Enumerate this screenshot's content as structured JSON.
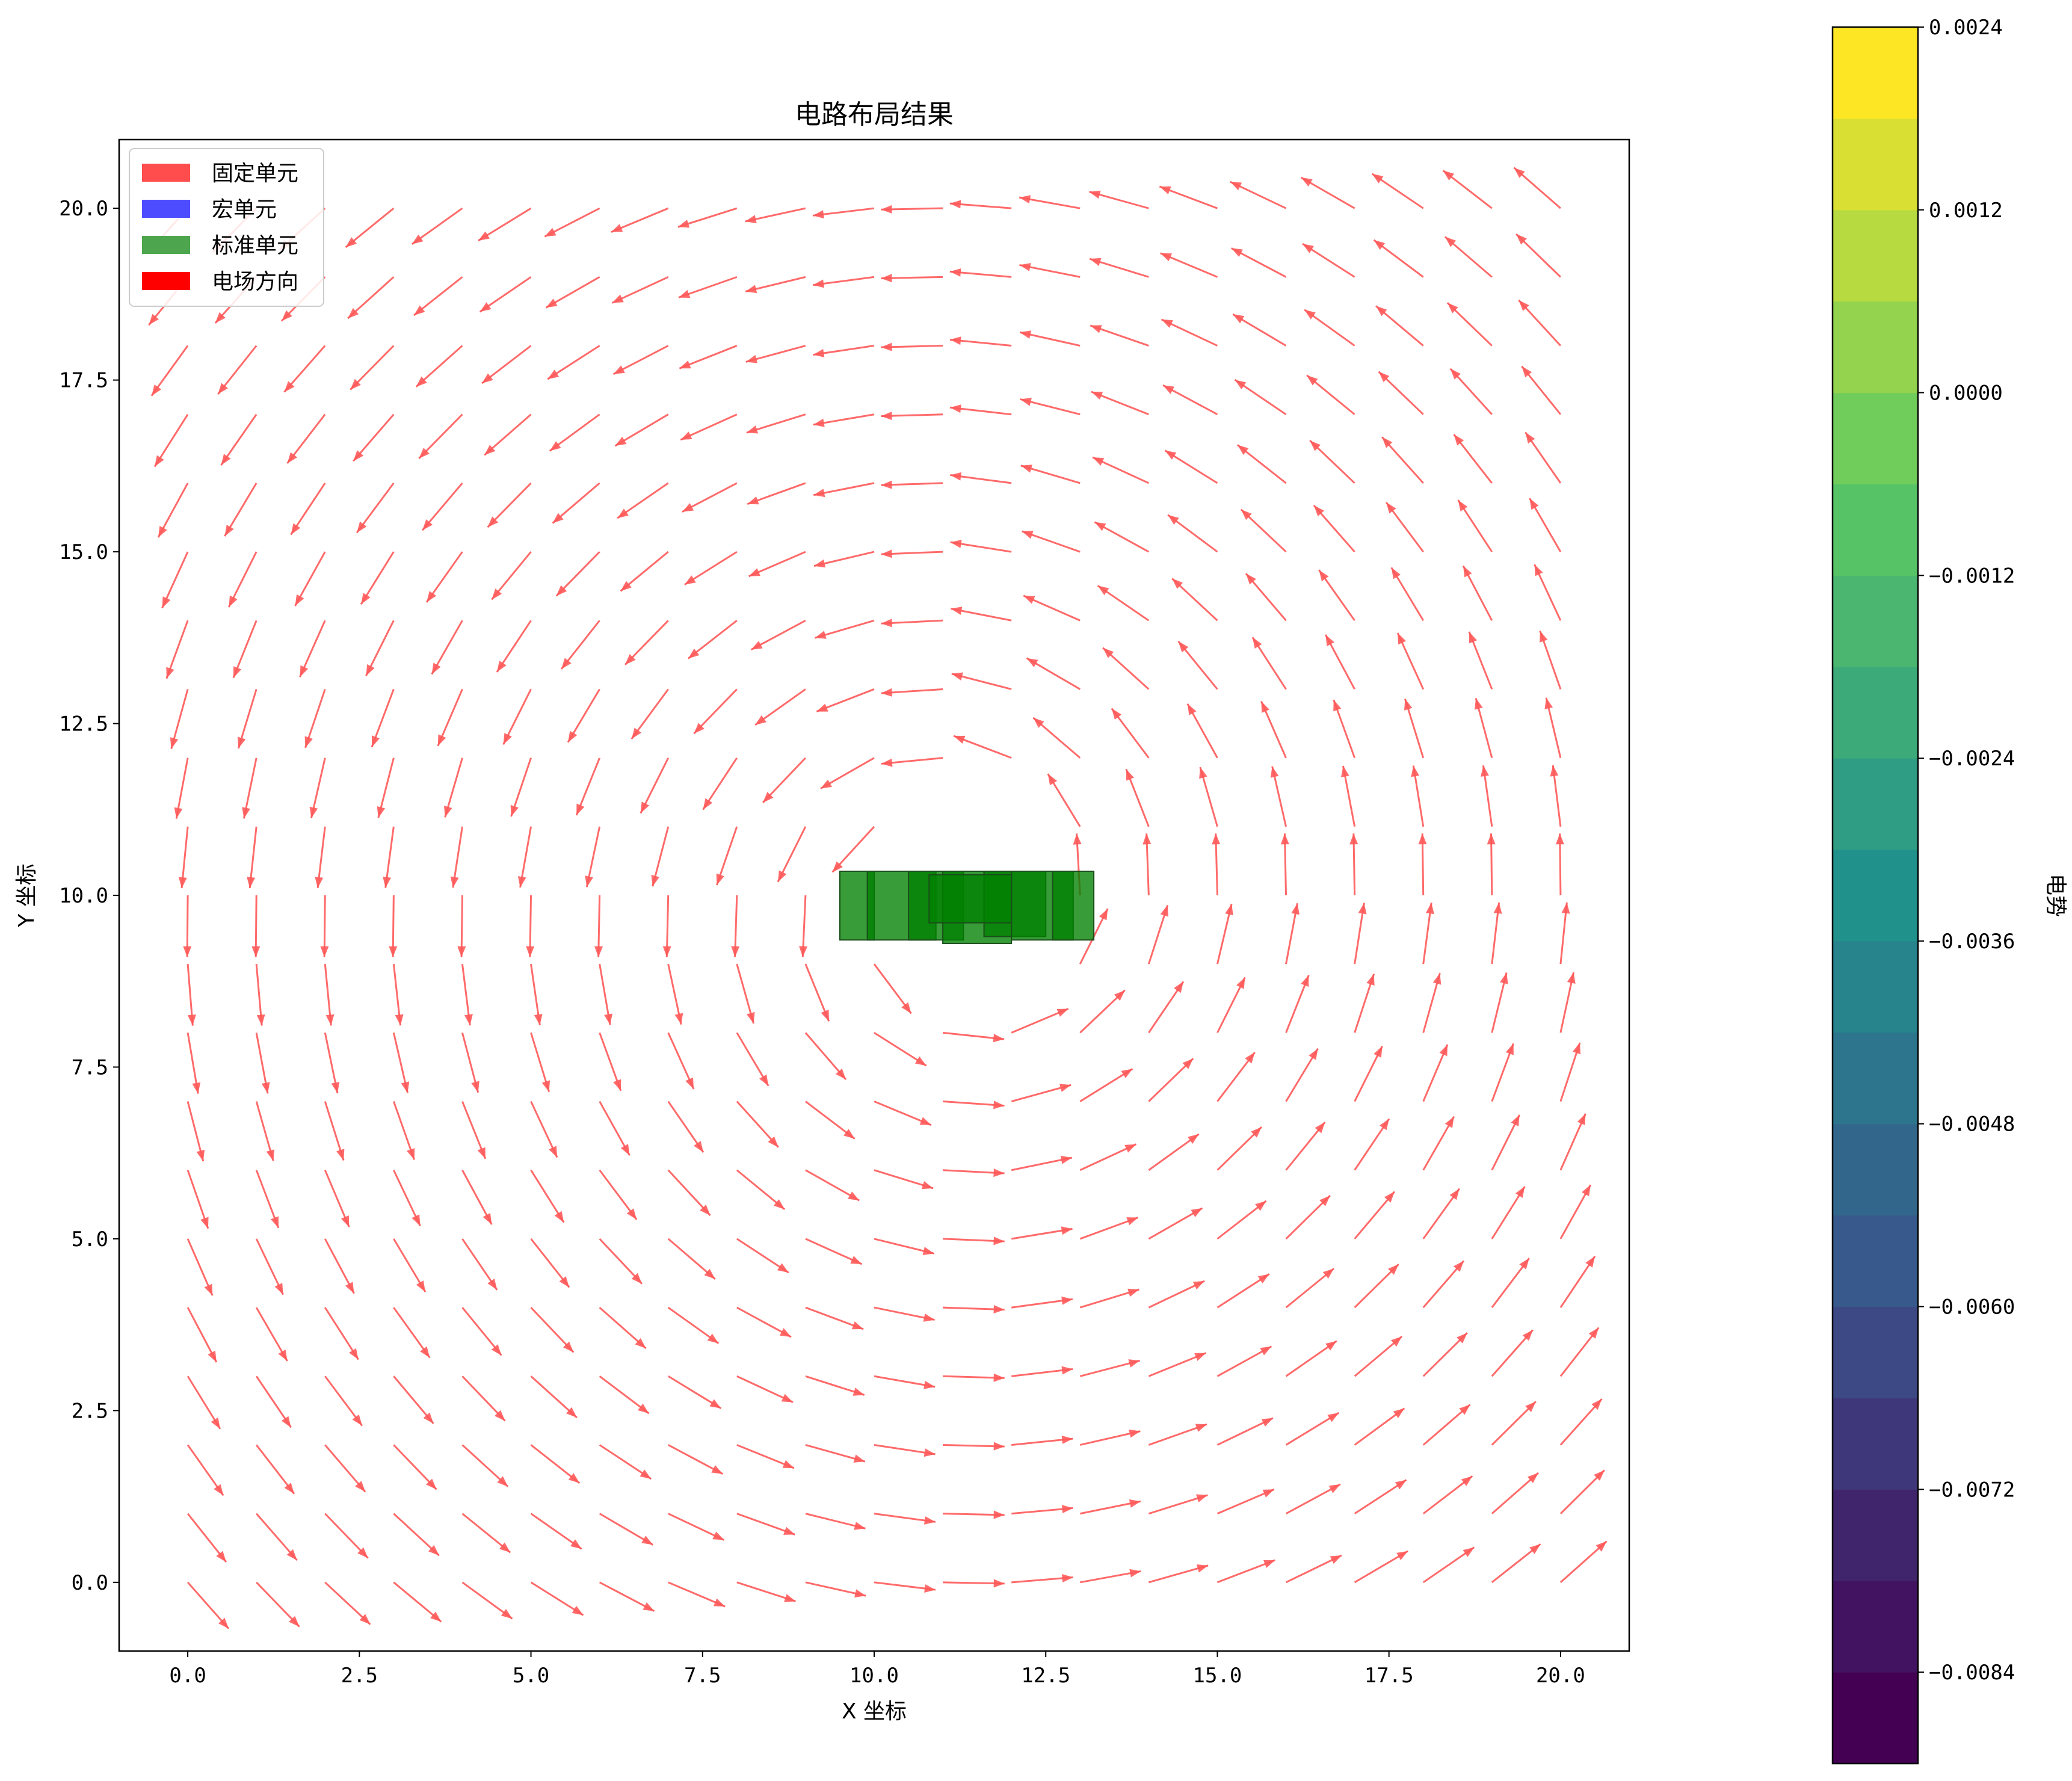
{
  "chart_data": {
    "type": "quiver",
    "title": "电路布局结果",
    "xlabel": "X 坐标",
    "ylabel": "Y 坐标",
    "xlim": [
      -1.0,
      21.0
    ],
    "ylim": [
      -1.0,
      21.0
    ],
    "xticks": [
      0.0,
      2.5,
      5.0,
      7.5,
      10.0,
      12.5,
      15.0,
      17.5,
      20.0
    ],
    "xtick_labels": [
      "0.0",
      "2.5",
      "5.0",
      "7.5",
      "10.0",
      "12.5",
      "15.0",
      "17.5",
      "20.0"
    ],
    "yticks": [
      0.0,
      2.5,
      5.0,
      7.5,
      10.0,
      12.5,
      15.0,
      17.5,
      20.0
    ],
    "ytick_labels": [
      "0.0",
      "2.5",
      "5.0",
      "7.5",
      "10.0",
      "12.5",
      "15.0",
      "17.5",
      "20.0"
    ],
    "grid": false,
    "legend_position": "top-left",
    "legend": [
      {
        "label": "固定单元",
        "color": "#ff4d4d"
      },
      {
        "label": "宏单元",
        "color": "#4d4dff"
      },
      {
        "label": "标准单元",
        "color": "#4da64d"
      },
      {
        "label": "电场方向",
        "color": "#ff0000"
      }
    ],
    "arrow_color": "#ff5a5a",
    "arrow_grid": {
      "x_start": 0.0,
      "x_end": 20.0,
      "y_start": 0.0,
      "y_end": 20.0,
      "count": 21
    },
    "field_source": {
      "x": 11.2,
      "y": 9.9
    },
    "standard_cells": [
      {
        "x": 9.5,
        "y": 9.35,
        "w": 0.5,
        "h": 1.0
      },
      {
        "x": 9.9,
        "y": 9.35,
        "w": 1.0,
        "h": 1.0
      },
      {
        "x": 10.5,
        "y": 9.35,
        "w": 0.8,
        "h": 1.0
      },
      {
        "x": 11.0,
        "y": 9.3,
        "w": 1.0,
        "h": 1.05
      },
      {
        "x": 11.6,
        "y": 9.4,
        "w": 0.9,
        "h": 0.95
      },
      {
        "x": 12.0,
        "y": 9.35,
        "w": 0.9,
        "h": 1.0
      },
      {
        "x": 12.6,
        "y": 9.35,
        "w": 0.6,
        "h": 1.0
      },
      {
        "x": 10.8,
        "y": 9.6,
        "w": 1.2,
        "h": 0.7
      }
    ],
    "colorbar": {
      "label": "电势",
      "min": -0.009,
      "max": 0.0024,
      "levels": 19,
      "tick_values": [
        0.0024,
        0.0012,
        0.0,
        -0.0012,
        -0.0024,
        -0.0036,
        -0.0048,
        -0.006,
        -0.0072,
        -0.0084
      ],
      "tick_labels": [
        "0.0024",
        "0.0012",
        "0.0000",
        "−0.0012",
        "−0.0024",
        "−0.0036",
        "−0.0048",
        "−0.0060",
        "−0.0072",
        "−0.0084"
      ],
      "colormap": "viridis"
    }
  }
}
